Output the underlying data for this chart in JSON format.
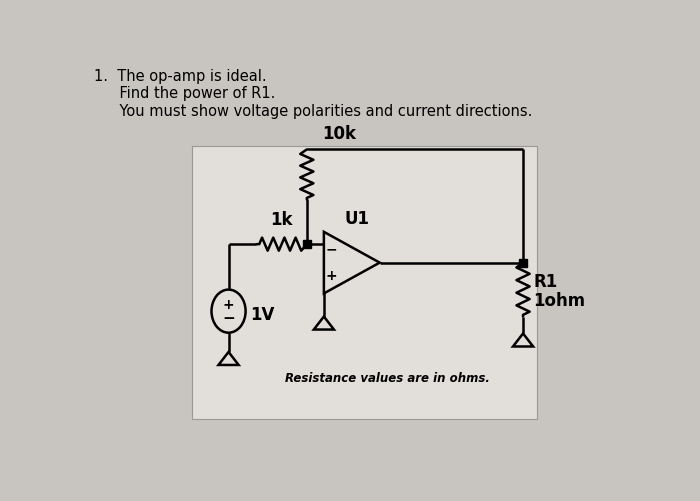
{
  "title_lines": [
    "1.  The op-amp is ideal.",
    "    Find the power of R1.",
    "    You must show voltage polarities and current directions."
  ],
  "background_color": "#c8c4c0",
  "panel_color": "#e2deda",
  "text_color": "#000000",
  "resistance_note": "Resistance values are in ohms.",
  "labels": {
    "R1k": "1k",
    "R10k": "10k",
    "R1": "R1",
    "R1ohm": "1ohm",
    "U1": "U1",
    "V1": "1V"
  },
  "title_fontsize": 10.5,
  "label_fontsize": 12,
  "note_fontsize": 8.5,
  "lw": 1.8
}
